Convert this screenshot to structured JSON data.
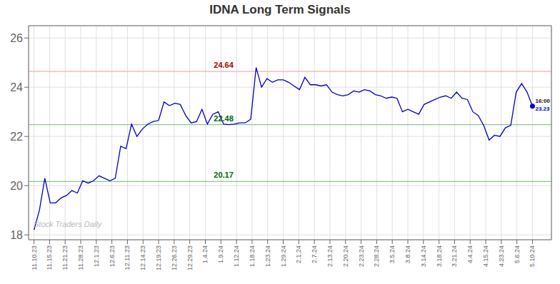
{
  "chart_data": {
    "type": "line",
    "title": "IDNA Long Term Signals",
    "color": "#0000cc",
    "marker": "last",
    "grid": true,
    "x": [
      0,
      1,
      2,
      3,
      4,
      5,
      6,
      7,
      8,
      9,
      10,
      11,
      12,
      13,
      14,
      15,
      16,
      17,
      18,
      19,
      20,
      21,
      22,
      23,
      24,
      25,
      26,
      27,
      28,
      29,
      30,
      31,
      32,
      33,
      34,
      35,
      36,
      37,
      38,
      39,
      40,
      41,
      42,
      43,
      44,
      45,
      46,
      47,
      48,
      49,
      50,
      51,
      52,
      53,
      54,
      55,
      56,
      57,
      58,
      59,
      60,
      61,
      62,
      63,
      64,
      65,
      66,
      67,
      68,
      69,
      70,
      71,
      72,
      73,
      74,
      75,
      76,
      77,
      78,
      79,
      80,
      81,
      82,
      83,
      84,
      85,
      86,
      87,
      88,
      89,
      90,
      91,
      92
    ],
    "values": [
      18.2,
      19.0,
      20.3,
      19.3,
      19.3,
      19.5,
      19.6,
      19.8,
      19.7,
      20.2,
      20.1,
      20.2,
      20.4,
      20.3,
      20.2,
      20.3,
      21.6,
      21.5,
      22.5,
      22.0,
      22.3,
      22.5,
      22.6,
      22.65,
      23.4,
      23.25,
      23.35,
      23.3,
      22.85,
      22.55,
      22.6,
      23.1,
      22.5,
      22.9,
      23.0,
      22.5,
      22.48,
      22.5,
      22.55,
      22.55,
      22.7,
      24.8,
      24.0,
      24.35,
      24.2,
      24.3,
      24.3,
      24.2,
      24.05,
      23.9,
      24.4,
      24.1,
      24.1,
      24.05,
      24.1,
      23.8,
      23.7,
      23.65,
      23.7,
      23.85,
      23.8,
      23.9,
      23.85,
      23.7,
      23.65,
      23.55,
      23.6,
      23.55,
      23.0,
      23.1,
      23.0,
      22.9,
      23.3,
      23.4,
      23.5,
      23.6,
      23.65,
      23.55,
      23.8,
      23.55,
      23.5,
      23.0,
      22.85,
      22.45,
      21.85,
      22.05,
      22.0,
      22.35,
      22.45,
      23.8,
      24.15,
      23.8,
      23.23
    ],
    "xlim": [
      -1,
      95.5
    ],
    "xticks": [
      {
        "value": 0,
        "label": "11.10.23"
      },
      {
        "value": 2.875,
        "label": "11.15.23"
      },
      {
        "value": 5.75,
        "label": "11.21.23"
      },
      {
        "value": 8.625,
        "label": "11.28.23"
      },
      {
        "value": 11.5,
        "label": "12.1.23"
      },
      {
        "value": 14.375,
        "label": "12.6.23"
      },
      {
        "value": 17.25,
        "label": "12.11.23"
      },
      {
        "value": 20.125,
        "label": "12.14.23"
      },
      {
        "value": 23,
        "label": "12.19.23"
      },
      {
        "value": 25.875,
        "label": "12.26.23"
      },
      {
        "value": 28.75,
        "label": "12.29.23"
      },
      {
        "value": 31.625,
        "label": "1.4.24"
      },
      {
        "value": 34.5,
        "label": "1.9.24"
      },
      {
        "value": 37.375,
        "label": "1.12.24"
      },
      {
        "value": 40.25,
        "label": "1.18.24"
      },
      {
        "value": 43.125,
        "label": "1.23.24"
      },
      {
        "value": 46,
        "label": "1.29.24"
      },
      {
        "value": 48.875,
        "label": "2.1.24"
      },
      {
        "value": 51.75,
        "label": "2.7.24"
      },
      {
        "value": 54.625,
        "label": "2.13.24"
      },
      {
        "value": 57.5,
        "label": "2.20.24"
      },
      {
        "value": 60.375,
        "label": "2.23.24"
      },
      {
        "value": 63.25,
        "label": "2.28.24"
      },
      {
        "value": 66.125,
        "label": "3.5.24"
      },
      {
        "value": 69,
        "label": "3.8.24"
      },
      {
        "value": 71.875,
        "label": "3.14.24"
      },
      {
        "value": 74.75,
        "label": "3.18.24"
      },
      {
        "value": 77.625,
        "label": "3.21.24"
      },
      {
        "value": 80.5,
        "label": "4.4.24"
      },
      {
        "value": 83.375,
        "label": "4.15.24"
      },
      {
        "value": 86.25,
        "label": "4.23.24"
      },
      {
        "value": 89.125,
        "label": "5.6.24"
      },
      {
        "value": 92,
        "label": "5.10.24"
      }
    ],
    "ylim": [
      17.8,
      26.5
    ],
    "yticks": [
      18,
      20,
      22,
      24,
      26
    ],
    "reference_lines": [
      {
        "y": 24.64,
        "color": "#ffaaaa",
        "label": "24.64",
        "label_color": "#aa0000",
        "label_x": 35
      },
      {
        "y": 22.48,
        "color": "#88cc88",
        "label": "22.48",
        "label_color": "#006600",
        "label_x": 35
      },
      {
        "y": 20.17,
        "color": "#88cc88",
        "label": "20.17",
        "label_color": "#006600",
        "label_x": 35
      }
    ],
    "end_labels": [
      {
        "text": "16:00",
        "color": "#111111"
      },
      {
        "text": "23.23",
        "color": "#0000aa"
      }
    ],
    "watermark": {
      "text": "Stock Traders Daily",
      "color": "#bbbbbb"
    }
  }
}
